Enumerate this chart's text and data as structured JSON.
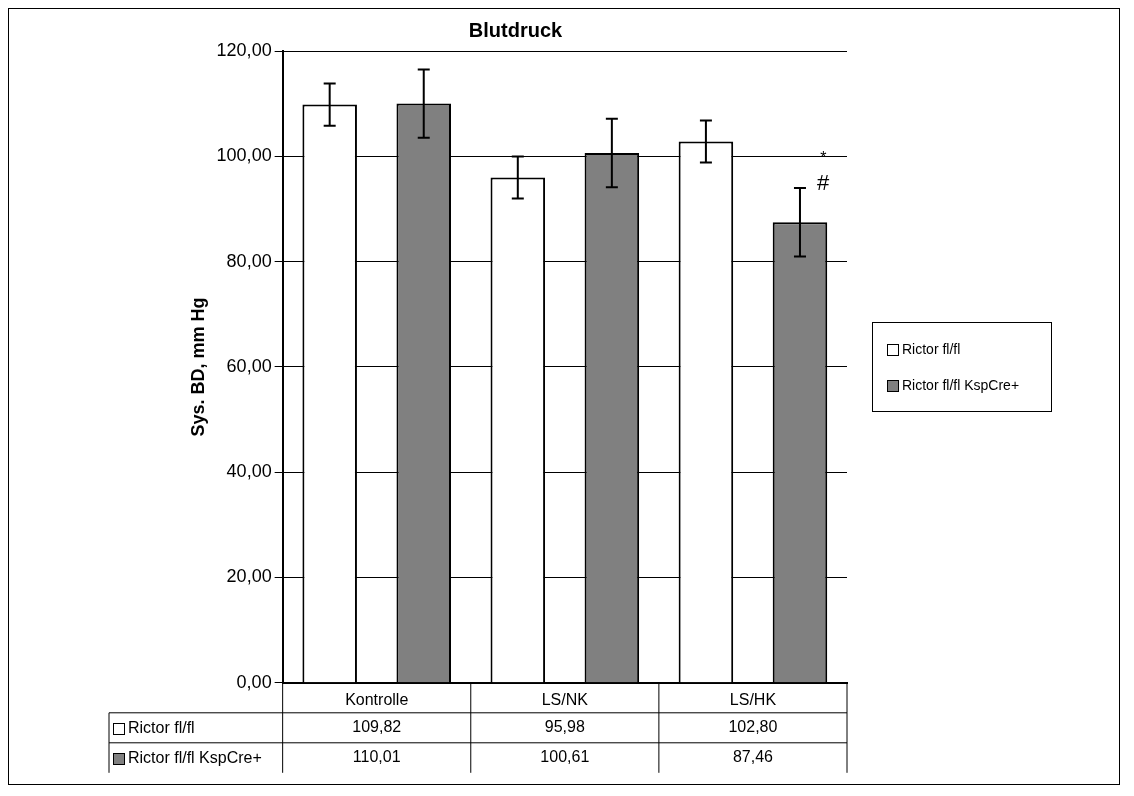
{
  "chart_data": {
    "type": "bar",
    "title": "Blutdruck",
    "ylabel": "Sys. BD, mm Hg",
    "categories": [
      "Kontrolle",
      "LS/NK",
      "LS/HK"
    ],
    "series": [
      {
        "name": "Rictor fl/fl",
        "color": "#ffffff",
        "values": [
          109.82,
          95.98,
          102.8
        ],
        "errors": [
          4,
          4,
          4
        ],
        "value_labels": [
          "109,82",
          "95,98",
          "102,80"
        ]
      },
      {
        "name": "Rictor fl/fl KspCre+",
        "color": "#808080",
        "values": [
          110.01,
          100.61,
          87.46
        ],
        "errors": [
          6.5,
          6.5,
          6.5
        ],
        "value_labels": [
          "110,01",
          "100,61",
          "87,46"
        ]
      }
    ],
    "ylim": [
      0,
      120
    ],
    "yticks": [
      {
        "value": 0,
        "label": "0,00"
      },
      {
        "value": 20,
        "label": "20,00"
      },
      {
        "value": 40,
        "label": "40,00"
      },
      {
        "value": 60,
        "label": "60,00"
      },
      {
        "value": 80,
        "label": "80,00"
      },
      {
        "value": 100,
        "label": "100,00"
      },
      {
        "value": 120,
        "label": "120,00"
      }
    ],
    "grid": "y",
    "legend": "right",
    "annotations": [
      "*",
      "#"
    ]
  }
}
